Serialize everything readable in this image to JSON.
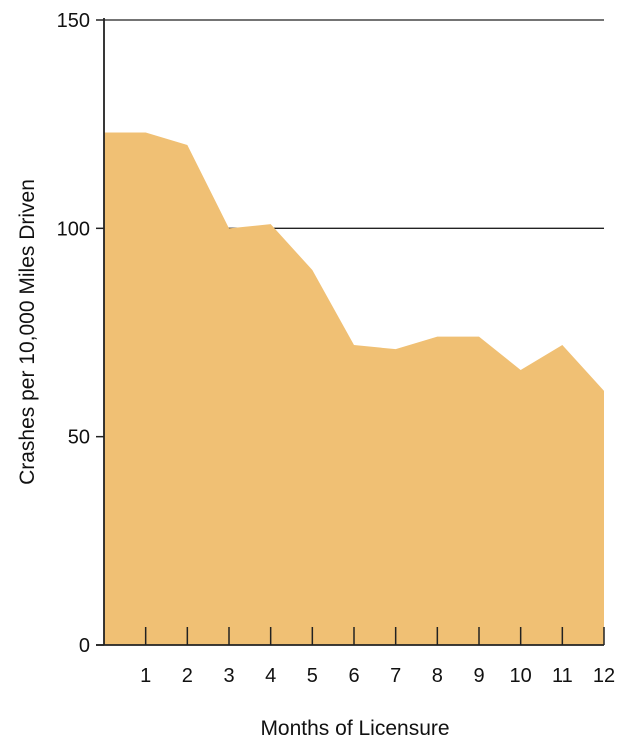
{
  "chart_data": {
    "type": "area",
    "title": "",
    "xlabel": "Months of Licensure",
    "ylabel": "Crashes per 10,000 Miles Driven",
    "x": [
      0,
      1,
      2,
      3,
      4,
      5,
      6,
      7,
      8,
      9,
      10,
      11,
      12
    ],
    "xticks": [
      "1",
      "2",
      "3",
      "4",
      "5",
      "6",
      "7",
      "8",
      "9",
      "10",
      "11",
      "12"
    ],
    "yticks": [
      "150",
      "100",
      "50",
      "0"
    ],
    "series": [
      {
        "values": [
          123,
          123,
          120,
          100,
          101,
          90,
          72,
          71,
          74,
          74,
          66,
          72,
          61
        ]
      }
    ],
    "xlim": [
      0,
      12
    ],
    "ylim": [
      0,
      150
    ],
    "grid": "horizontal at 50, 100, 150",
    "fill_color": "#f0c074",
    "line_color": "#222222"
  }
}
